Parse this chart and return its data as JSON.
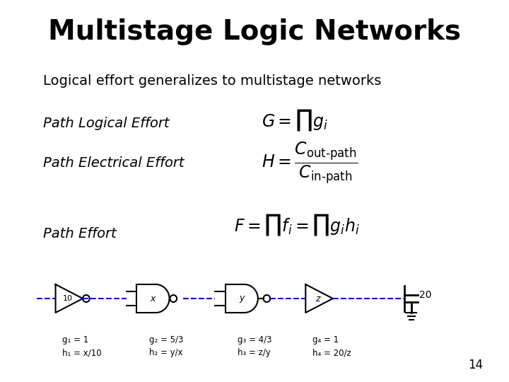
{
  "title": "Multistage Logic Networks",
  "subtitle": "Logical effort generalizes to multistage networks",
  "label1": "Path Logical Effort",
  "label2": "Path Electrical Effort",
  "label3": "Path Effort",
  "formula1": "$G = \\prod g_i$",
  "formula2": "$H = \\dfrac{C_{\\mathrm{out\\text{-}path}}}{C_{\\mathrm{in\\text{-}path}}}$",
  "formula3": "$F = \\prod f_i = \\prod g_i h_i$",
  "page_number": "14",
  "background_color": "#ffffff",
  "text_color": "#000000",
  "title_fontsize": 28,
  "subtitle_fontsize": 14,
  "label_fontsize": 14,
  "formula_fontsize": 15,
  "gate_labels": [
    "g₁ = 1\nh₁ = x/10",
    "g₂ = 5/3\nh₂ = y/x",
    "g₃ = 4/3\nh₃ = z/y",
    "g₄ = 1\nh₄ = 20/z"
  ],
  "node_labels": [
    "10",
    "x",
    "y",
    "z",
    "20"
  ],
  "dashed_line_color": "#0000cc",
  "gate_line_color": "#000000"
}
